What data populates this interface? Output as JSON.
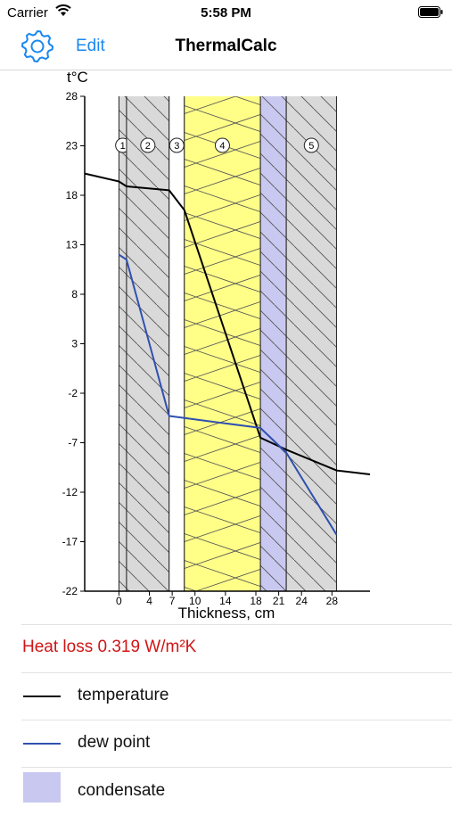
{
  "status_bar": {
    "carrier": "Carrier",
    "time": "5:58 PM"
  },
  "nav": {
    "edit_label": "Edit",
    "title": "ThermalCalc"
  },
  "chart_data": {
    "type": "line",
    "ylabel": "t°C",
    "xlabel": "Thickness, cm",
    "xlim": [
      -4.5,
      33
    ],
    "ylim": [
      -22,
      28
    ],
    "y_ticks": [
      28,
      23,
      18,
      13,
      8,
      3,
      -2,
      -7,
      -12,
      -17,
      -22
    ],
    "x_ticks": [
      0,
      4,
      7,
      10,
      14,
      18,
      21,
      24,
      28
    ],
    "layers": [
      {
        "label": "1",
        "from": 0,
        "to": 1,
        "fill": "#d9d9d9",
        "hatch": true
      },
      {
        "label": "2",
        "from": 1,
        "to": 6.6,
        "fill": "#d9d9d9",
        "hatch": true
      },
      {
        "label": "3",
        "from": 6.6,
        "to": 8.6,
        "fill": "#ffffff",
        "hatch": false
      },
      {
        "label": "4",
        "from": 8.6,
        "to": 18.6,
        "fill": "#ffff88",
        "hatch": false,
        "insulation": true
      },
      {
        "label": "",
        "from": 18.6,
        "to": 22,
        "fill": "#c8c8f0",
        "hatch": true
      },
      {
        "label": "5",
        "from": 22,
        "to": 28.6,
        "fill": "#d9d9d9",
        "hatch": true
      }
    ],
    "condensate_zone": [
      18.6,
      22
    ],
    "series": [
      {
        "name": "temperature",
        "color": "#000000",
        "x": [
          -4.5,
          0,
          1,
          6.6,
          8.6,
          18.6,
          22,
          28.6,
          33
        ],
        "y": [
          20.2,
          19.4,
          18.9,
          18.5,
          16.5,
          -6.5,
          -7.7,
          -9.8,
          -10.2
        ]
      },
      {
        "name": "dew point",
        "color": "#3050b0",
        "x": [
          0,
          1,
          6.6,
          8.6,
          18.6,
          22,
          28.6
        ],
        "y": [
          12,
          11.5,
          -4.3,
          -4.5,
          -5.5,
          -8,
          -16.3
        ]
      }
    ]
  },
  "results": {
    "heat_loss": "Heat loss 0.319 W/m²K"
  },
  "legend": {
    "temperature": {
      "label": "temperature",
      "color": "#000000"
    },
    "dew_point": {
      "label": "dew point",
      "color": "#3050b0"
    },
    "condensate": {
      "label": "condensate",
      "color": "#c8c8f0"
    }
  }
}
